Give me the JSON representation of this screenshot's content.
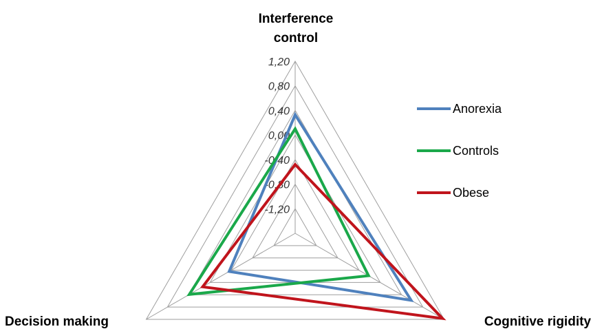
{
  "chart_data": {
    "type": "radar",
    "axes": [
      "Interference control",
      "Cognitive rigidity",
      "Decision making"
    ],
    "axis_label_lines": [
      [
        "Interference",
        "control"
      ],
      [
        "Cognitive rigidity"
      ],
      [
        "Decision making"
      ]
    ],
    "ticks": [
      "1,20",
      "0,80",
      "0,40",
      "0,00",
      "-0,40",
      "-0,80",
      "-1,20"
    ],
    "tick_values": [
      1.2,
      0.8,
      0.4,
      0.0,
      -0.4,
      -0.8,
      -1.2
    ],
    "range": [
      -1.6,
      1.2
    ],
    "grid": true,
    "legend_position": "right",
    "series": [
      {
        "name": "Anorexia",
        "color": "#4f81bd",
        "values": [
          0.33,
          0.58,
          -0.36
        ]
      },
      {
        "name": "Controls",
        "color": "#1aa84a",
        "values": [
          0.1,
          -0.22,
          0.39
        ]
      },
      {
        "name": "Obese",
        "color": "#c0141c",
        "values": [
          -0.48,
          1.17,
          0.14
        ]
      }
    ]
  }
}
